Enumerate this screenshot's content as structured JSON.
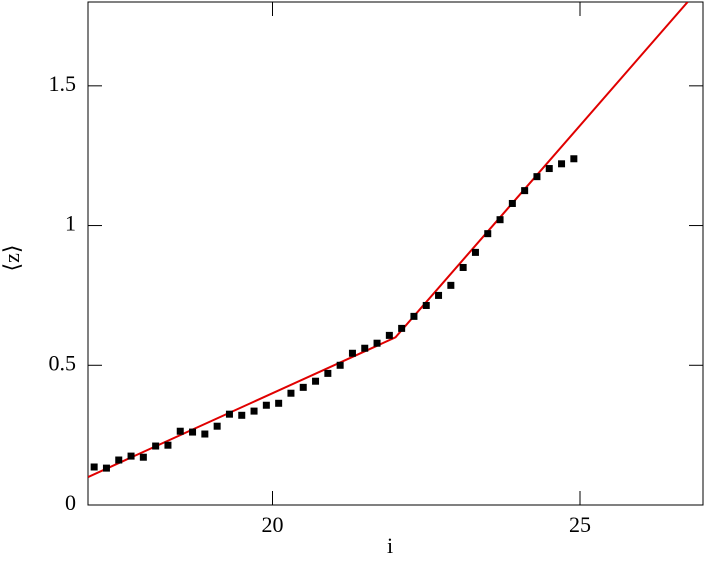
{
  "chart_data": {
    "type": "scatter",
    "x_label": "i",
    "y_label": "⟨z⟩",
    "xlim": [
      17,
      27
    ],
    "ylim": [
      0,
      1.8
    ],
    "xticks": [
      20,
      25
    ],
    "yticks": [
      0,
      0.5,
      1,
      1.5
    ],
    "points": {
      "color": "#000000",
      "x": [
        17.1,
        17.3,
        17.5,
        17.7,
        17.9,
        18.1,
        18.3,
        18.5,
        18.7,
        18.9,
        19.1,
        19.3,
        19.5,
        19.7,
        19.9,
        20.1,
        20.3,
        20.5,
        20.7,
        20.9,
        21.1,
        21.3,
        21.5,
        21.7,
        21.9,
        22.1,
        22.3,
        22.5,
        22.7,
        22.9,
        23.1,
        23.3,
        23.5,
        23.7,
        23.9,
        24.1,
        24.3,
        24.5,
        24.7,
        24.9
      ],
      "values": [
        0.136,
        0.132,
        0.161,
        0.175,
        0.171,
        0.211,
        0.214,
        0.264,
        0.261,
        0.254,
        0.282,
        0.325,
        0.321,
        0.336,
        0.357,
        0.364,
        0.4,
        0.421,
        0.443,
        0.471,
        0.5,
        0.543,
        0.561,
        0.579,
        0.607,
        0.632,
        0.675,
        0.714,
        0.75,
        0.786,
        0.85,
        0.904,
        0.971,
        1.021,
        1.079,
        1.125,
        1.175,
        1.204,
        1.221,
        1.239
      ]
    },
    "fit": {
      "color": "#e00000",
      "x": [
        17,
        22,
        26.75
      ],
      "values": [
        0.1,
        0.6,
        1.8
      ]
    }
  }
}
